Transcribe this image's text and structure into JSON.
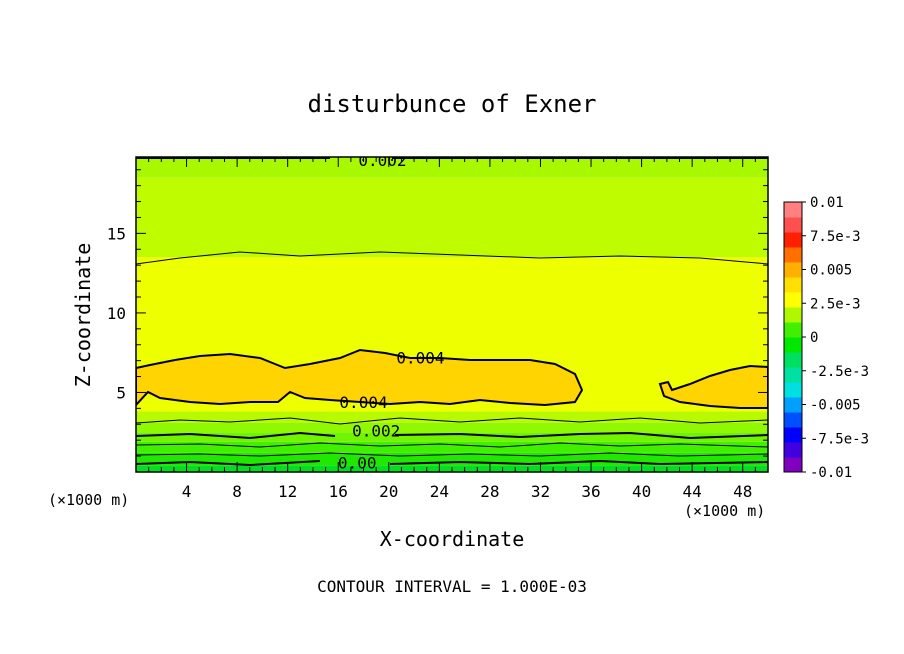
{
  "chart_data": {
    "type": "heatmap",
    "title": "disturbunce of Exner",
    "xlabel": "X-coordinate",
    "ylabel": "Z-coordinate",
    "x_unit_note_left": "(×1000 m)",
    "x_unit_note_right": "(×1000 m)",
    "footnote": "CONTOUR INTERVAL = 1.000E-03",
    "xlim": [
      0,
      50
    ],
    "ylim": [
      0,
      19.8
    ],
    "x_ticks": [
      4,
      8,
      12,
      16,
      20,
      24,
      28,
      32,
      36,
      40,
      44,
      48
    ],
    "y_ticks": [
      5,
      10,
      15
    ],
    "colorbar": {
      "range": [
        -0.01,
        0.01
      ],
      "tick_labels": [
        "0.01",
        "7.5e-3",
        "0.005",
        "2.5e-3",
        "0",
        "-2.5e-3",
        "-0.005",
        "-7.5e-3",
        "-0.01"
      ],
      "tick_values": [
        0.01,
        0.0075,
        0.005,
        0.0025,
        0,
        -0.0025,
        -0.005,
        -0.0075,
        -0.01
      ],
      "colors_bottom_to_top": [
        "#8000c0",
        "#4000e0",
        "#0000ff",
        "#0050ff",
        "#00a0ff",
        "#00e0e0",
        "#00e0a0",
        "#00e060",
        "#00e800",
        "#40f000",
        "#b0f800",
        "#ffff00",
        "#ffe000",
        "#ffb000",
        "#ff7000",
        "#ff2000",
        "#ff5050",
        "#ff8080"
      ]
    },
    "bands": [
      {
        "from": 0.0,
        "to": 0.4,
        "value": 0.0005,
        "color": "#00e020"
      },
      {
        "from": 0.4,
        "to": 1.2,
        "value": 0.001,
        "color": "#20e800"
      },
      {
        "from": 1.2,
        "to": 1.9,
        "value": 0.0015,
        "color": "#40f000"
      },
      {
        "from": 1.9,
        "to": 2.5,
        "value": 0.002,
        "color": "#70f400"
      },
      {
        "from": 2.5,
        "to": 3.1,
        "value": 0.0025,
        "color": "#90f800"
      },
      {
        "from": 3.1,
        "to": 3.8,
        "value": 0.003,
        "color": "#b8fa00"
      },
      {
        "from": 3.8,
        "to": 13.5,
        "value": 0.0035,
        "color": "#eeff00"
      },
      {
        "from": 13.5,
        "to": 18.5,
        "value": 0.003,
        "color": "#c0fc00"
      },
      {
        "from": 18.5,
        "to": 19.8,
        "value": 0.0025,
        "color": "#a8f800"
      }
    ],
    "contour_labels": [
      {
        "text": "0.002",
        "x": 19.5,
        "z": 19.6
      },
      {
        "text": "0.004",
        "x": 22.5,
        "z": 7.2
      },
      {
        "text": "0.004",
        "x": 18.0,
        "z": 4.4
      },
      {
        "text": "0.002",
        "x": 19.0,
        "z": 2.6
      },
      {
        "text": "0.00",
        "x": 17.5,
        "z": 0.6
      }
    ]
  }
}
